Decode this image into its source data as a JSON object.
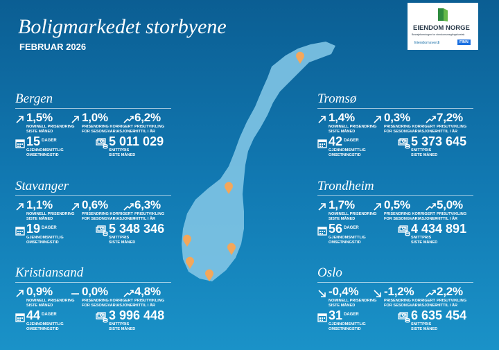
{
  "header": {
    "title": "Boligmarkedet storbyene",
    "subtitle": "FEBRUAR 2026"
  },
  "logo": {
    "name": "EIENDOM NORGE",
    "tagline": "Bransjeforeningen for eiendomsmeglingsforetak",
    "partner1": "Eiendomsverdi",
    "partner2": "FINN"
  },
  "labels": {
    "monthly": "NOMINELL PRISENDRING SISTE MÅNED",
    "seasonal": "PRISENDRING KORRIGERT FOR SESONGVARIASJONER",
    "ytd": "PRISUTVIKLING HITTIL I ÅR",
    "days_unit": "DAGER",
    "days": "GJENNOMSNITTLIG OMSETNINGSTID",
    "price": "SNITTPRIS SISTE MÅNED"
  },
  "cities": [
    {
      "name": "Bergen",
      "monthly": "1,5%",
      "seasonal": "1,0%",
      "ytd": "6,2%",
      "days": "15",
      "price": "5 011 029"
    },
    {
      "name": "Stavanger",
      "monthly": "1,1%",
      "seasonal": "0,6%",
      "ytd": "6,3%",
      "days": "19",
      "price": "5 348 346"
    },
    {
      "name": "Kristiansand",
      "monthly": "0,9%",
      "seasonal": "0,0%",
      "ytd": "4,8%",
      "days": "44",
      "price": "3 996 448"
    },
    {
      "name": "Tromsø",
      "monthly": "1,4%",
      "seasonal": "0,3%",
      "ytd": "7,2%",
      "days": "42",
      "price": "5 373 645"
    },
    {
      "name": "Trondheim",
      "monthly": "1,7%",
      "seasonal": "0,5%",
      "ytd": "5,0%",
      "days": "56",
      "price": "4 434 891"
    },
    {
      "name": "Oslo",
      "monthly": "-0,4%",
      "seasonal": "-1,2%",
      "ytd": "2,2%",
      "days": "31",
      "price": "6 635 454"
    }
  ]
}
